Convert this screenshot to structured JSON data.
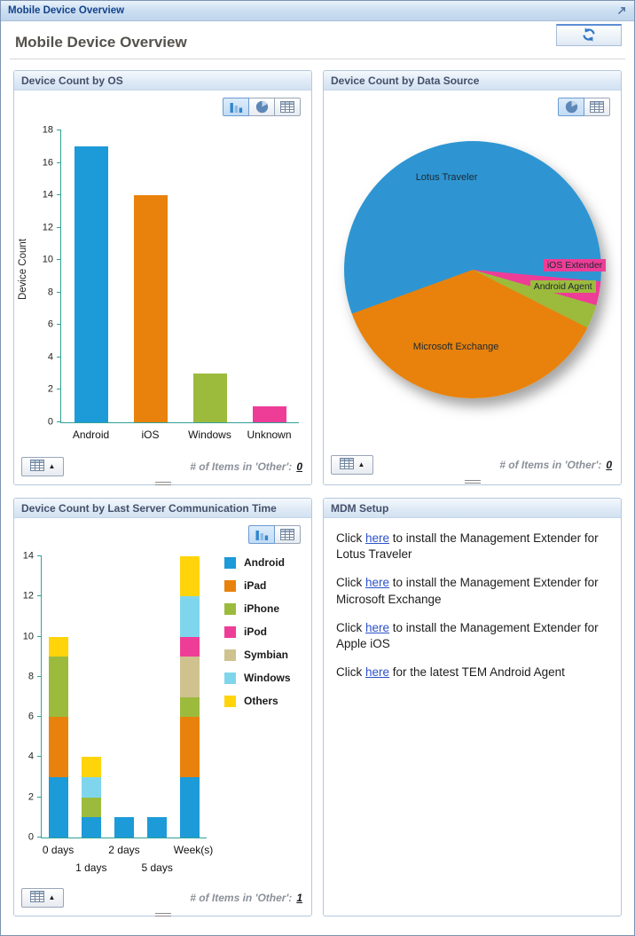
{
  "window": {
    "title": "Mobile Device Overview"
  },
  "page": {
    "heading": "Mobile Device Overview"
  },
  "icons": {
    "titlebar_popout": "popout-icon",
    "refresh": "refresh-icon",
    "collapse_toggle": [
      "table-icon",
      "collapse-up-arrow-icon"
    ]
  },
  "toolbars": {
    "os": [
      {
        "icon": "bar-chart-icon",
        "selected": true
      },
      {
        "icon": "pie-chart-icon",
        "selected": false
      },
      {
        "icon": "table-icon",
        "selected": false
      }
    ],
    "datasource": [
      {
        "icon": "pie-chart-icon",
        "selected": true
      },
      {
        "icon": "table-icon",
        "selected": false
      }
    ],
    "lastcomm": [
      {
        "icon": "bar-chart-icon",
        "selected": true
      },
      {
        "icon": "table-icon",
        "selected": false
      }
    ]
  },
  "panels": {
    "os": {
      "title": "Device Count by OS",
      "other_label": "# of Items in 'Other':",
      "other_count": "0"
    },
    "datasource": {
      "title": "Device Count by Data Source",
      "other_label": "# of Items in 'Other':",
      "other_count": "0"
    },
    "lastcomm": {
      "title": "Device Count by Last Server Communication Time",
      "other_label": "# of Items in 'Other':",
      "other_count": "1"
    },
    "mdm": {
      "title": "MDM Setup",
      "items": [
        {
          "pre": "Click ",
          "link": "here",
          "post": " to install the Management Extender for Lotus Traveler"
        },
        {
          "pre": "Click ",
          "link": "here",
          "post": " to install the Management Extender for Microsoft Exchange"
        },
        {
          "pre": "Click ",
          "link": "here",
          "post": " to install the Management Extender for Apple iOS"
        },
        {
          "pre": "Click ",
          "link": "here",
          "post": " for the latest TEM Android Agent"
        }
      ]
    }
  },
  "chart_data": [
    {
      "id": "os",
      "type": "bar",
      "title": "Device Count by OS",
      "categories": [
        "Android",
        "iOS",
        "Windows",
        "Unknown"
      ],
      "values": [
        17,
        14,
        3,
        1
      ],
      "colors": [
        "#1d9ad8",
        "#e8820c",
        "#9cbb3d",
        "#ee3d97"
      ],
      "xlabel": "",
      "ylabel": "Device Count",
      "ylim": [
        0,
        18
      ],
      "ytick_step": 2,
      "grid": false,
      "legend_position": "none"
    },
    {
      "id": "datasource",
      "type": "pie",
      "title": "Device Count by Data Source",
      "labels": [
        "Lotus Traveler",
        "iOS Extender",
        "Android Agent",
        "Microsoft Exchange"
      ],
      "values_percent": [
        57,
        3,
        3,
        37
      ],
      "colors": [
        "#2e95d2",
        "#ee3d97",
        "#9cbb3d",
        "#e8820c"
      ],
      "start_angle_deg": 250,
      "legend_position": "inline-slice-labels"
    },
    {
      "id": "lastcomm",
      "type": "stacked-bar",
      "title": "Device Count by Last Server Communication Time",
      "categories": [
        "0 days",
        "1 days",
        "2 days",
        "5 days",
        "Week(s)"
      ],
      "series": [
        {
          "name": "Android",
          "color": "#1d9ad8",
          "values": [
            3,
            1,
            1,
            1,
            3
          ]
        },
        {
          "name": "iPad",
          "color": "#e8820c",
          "values": [
            3,
            0,
            0,
            0,
            3
          ]
        },
        {
          "name": "iPhone",
          "color": "#9cbb3d",
          "values": [
            3,
            1,
            0,
            0,
            1
          ]
        },
        {
          "name": "iPod",
          "color": "#ee3d97",
          "values": [
            0,
            0,
            0,
            0,
            1
          ]
        },
        {
          "name": "Symbian",
          "color": "#cfc28e",
          "values": [
            0,
            0,
            0,
            0,
            2
          ]
        },
        {
          "name": "Windows",
          "color": "#7fd6ec",
          "values": [
            0,
            1,
            0,
            0,
            2
          ]
        },
        {
          "name": "Others",
          "color": "#ffd40a",
          "values": [
            1,
            1,
            0,
            0,
            2
          ]
        }
      ],
      "stack_order": [
        "Android",
        "iPad",
        "iPhone",
        "Symbian",
        "iPod",
        "Windows",
        "Others"
      ],
      "ylim": [
        0,
        14
      ],
      "ytick_step": 2,
      "grid": false,
      "legend_position": "right"
    }
  ]
}
